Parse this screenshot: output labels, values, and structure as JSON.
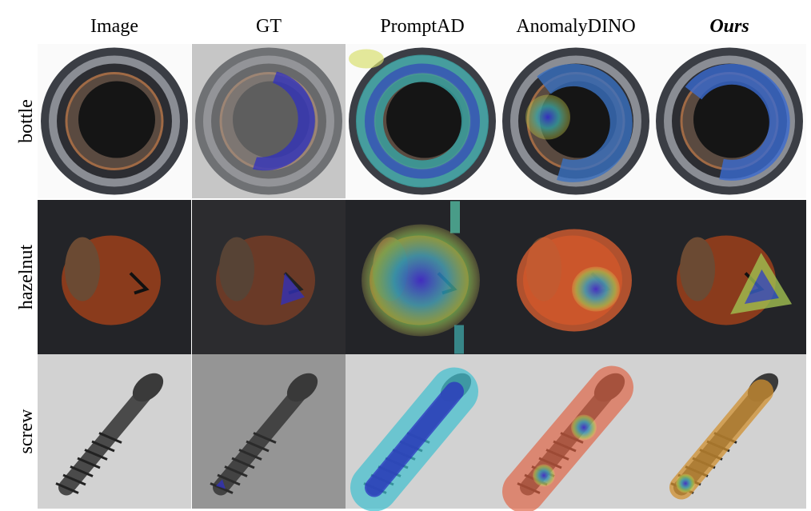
{
  "header": {
    "columns": [
      "Image",
      "GT",
      "PromptAD",
      "AnomalyDINO",
      "Ours"
    ]
  },
  "rows": [
    "bottle",
    "hazelnut",
    "screw"
  ]
}
